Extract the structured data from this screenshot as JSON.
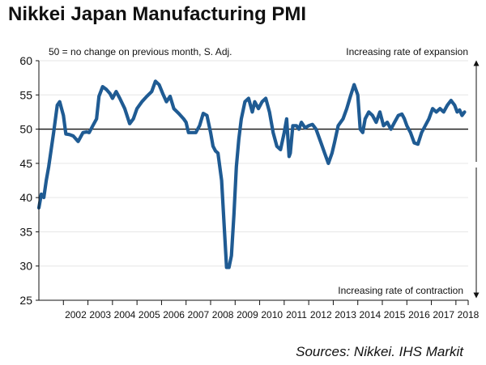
{
  "chart_data": {
    "type": "line",
    "title": "Nikkei Japan Manufacturing PMI",
    "subtitle": "50 = no change on previous month, S. Adj.",
    "annotation_top": "Increasing rate of expansion",
    "annotation_bottom": "Increasing rate of contraction",
    "source": "Sources: Nikkei. IHS Markit",
    "ylim": [
      25,
      60
    ],
    "yticks": [
      25,
      30,
      35,
      40,
      45,
      50,
      55,
      60
    ],
    "reference_line": 50,
    "xlim": [
      2001.0,
      2018.5
    ],
    "xtick_labels": [
      "2002",
      "2003",
      "2004",
      "2005",
      "2006",
      "2007",
      "2008",
      "2009",
      "2010",
      "2011",
      "2012",
      "2013",
      "2014",
      "2015",
      "2016",
      "2017",
      "2018"
    ],
    "series": [
      {
        "name": "Nikkei Japan Manufacturing PMI",
        "color": "#1f5b93",
        "x": [
          2001.0,
          2001.1,
          2001.2,
          2001.3,
          2001.4,
          2001.6,
          2001.75,
          2001.85,
          2002.0,
          2002.1,
          2002.25,
          2002.4,
          2002.6,
          2002.8,
          2002.95,
          2003.05,
          2003.2,
          2003.35,
          2003.45,
          2003.6,
          2003.75,
          2003.9,
          2004.0,
          2004.15,
          2004.3,
          2004.5,
          2004.7,
          2004.85,
          2005.0,
          2005.2,
          2005.4,
          2005.6,
          2005.75,
          2005.9,
          2006.05,
          2006.2,
          2006.35,
          2006.5,
          2006.7,
          2006.9,
          2007.0,
          2007.1,
          2007.25,
          2007.4,
          2007.55,
          2007.7,
          2007.85,
          2008.0,
          2008.1,
          2008.2,
          2008.3,
          2008.45,
          2008.55,
          2008.65,
          2008.75,
          2008.85,
          2008.95,
          2009.05,
          2009.15,
          2009.25,
          2009.4,
          2009.55,
          2009.7,
          2009.8,
          2009.95,
          2010.1,
          2010.25,
          2010.4,
          2010.55,
          2010.7,
          2010.85,
          2011.0,
          2011.1,
          2011.2,
          2011.25,
          2011.35,
          2011.5,
          2011.6,
          2011.7,
          2011.85,
          2012.0,
          2012.15,
          2012.3,
          2012.5,
          2012.65,
          2012.8,
          2012.95,
          2013.05,
          2013.2,
          2013.4,
          2013.55,
          2013.7,
          2013.85,
          2014.0,
          2014.1,
          2014.2,
          2014.3,
          2014.45,
          2014.6,
          2014.75,
          2014.9,
          2015.05,
          2015.2,
          2015.35,
          2015.5,
          2015.65,
          2015.8,
          2015.9,
          2016.0,
          2016.15,
          2016.3,
          2016.45,
          2016.6,
          2016.75,
          2016.9,
          2017.05,
          2017.2,
          2017.35,
          2017.5,
          2017.65,
          2017.8,
          2017.95,
          2018.05,
          2018.15,
          2018.25,
          2018.35
        ],
        "values": [
          38.5,
          40.5,
          40.0,
          42.5,
          44.5,
          49.5,
          53.5,
          54.0,
          52.0,
          49.3,
          49.2,
          49.0,
          48.2,
          49.5,
          49.6,
          49.5,
          50.5,
          51.5,
          54.8,
          56.2,
          55.8,
          55.2,
          54.5,
          55.5,
          54.5,
          53.0,
          50.8,
          51.5,
          53.0,
          54.0,
          54.8,
          55.5,
          57.0,
          56.5,
          55.2,
          54.0,
          54.8,
          53.0,
          52.3,
          51.5,
          51.0,
          49.5,
          49.5,
          49.5,
          50.5,
          52.3,
          52.0,
          49.5,
          47.5,
          46.8,
          46.5,
          42.5,
          36.0,
          29.8,
          29.8,
          31.5,
          37.5,
          44.5,
          48.5,
          51.5,
          54.0,
          54.5,
          52.5,
          54.0,
          53.0,
          54.0,
          54.5,
          52.5,
          49.5,
          47.5,
          47.0,
          49.5,
          51.5,
          46.0,
          46.5,
          50.5,
          50.5,
          50.0,
          51.0,
          50.2,
          50.5,
          50.7,
          50.0,
          48.0,
          46.5,
          45.0,
          46.5,
          48.0,
          50.5,
          51.5,
          53.0,
          54.8,
          56.5,
          55.0,
          50.0,
          49.5,
          51.5,
          52.5,
          52.0,
          51.0,
          52.5,
          50.5,
          51.0,
          50.0,
          51.0,
          52.0,
          52.2,
          51.5,
          50.5,
          49.5,
          48.0,
          47.8,
          49.5,
          50.5,
          51.5,
          53.0,
          52.5,
          53.0,
          52.5,
          53.5,
          54.2,
          53.5,
          52.5,
          52.8,
          52.0,
          52.5
        ]
      }
    ]
  }
}
